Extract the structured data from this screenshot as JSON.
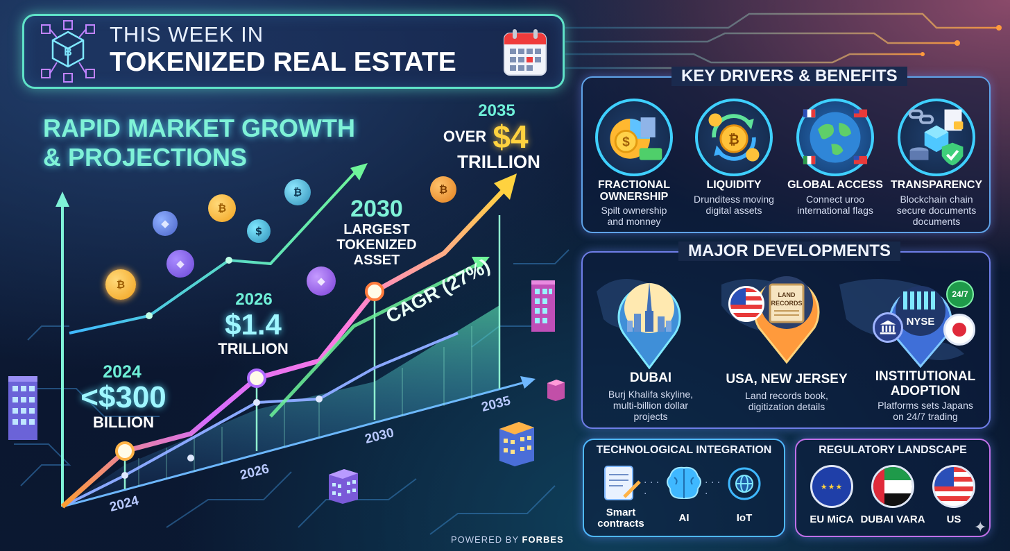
{
  "header": {
    "title_line1": "THIS WEEK IN",
    "title_line2": "TOKENIZED REAL ESTATE",
    "logo_icon": "blockchain-cube-icon",
    "calendar_icon": "calendar-icon"
  },
  "growth": {
    "heading_line1": "RAPID MARKET GROWTH",
    "heading_line2": "& PROJECTIONS",
    "milestones": [
      {
        "year": "2024",
        "value": "<$300",
        "unit": "BILLION"
      },
      {
        "year": "2026",
        "value": "$1.4",
        "unit": "TRILLION"
      },
      {
        "year": "2030",
        "label_line1": "LARGEST",
        "label_line2": "TOKENIZED",
        "label_line3": "ASSET"
      },
      {
        "year": "2035",
        "prefix": "OVER",
        "value": "$4",
        "unit": "TRILLION"
      }
    ],
    "cagr_label": "CAGR (27%)",
    "axis_years": [
      "2024",
      "2026",
      "2030",
      "2035"
    ],
    "footer": {
      "prefix": "POWERED BY",
      "brand": "FORBES"
    }
  },
  "drivers": {
    "title": "KEY DRIVERS & BENEFITS",
    "items": [
      {
        "title_line1": "FRACTIONAL",
        "title_line2": "OWNERSHIP",
        "desc_line1": "Spilt ownership",
        "desc_line2": "and monney",
        "icon": "pie-chart-coins-icon"
      },
      {
        "title_line1": "LIQUIDITY",
        "title_line2": "",
        "desc_line1": "Drunditess moving",
        "desc_line2": "digital assets",
        "icon": "coin-cycle-icon"
      },
      {
        "title_line1": "GLOBAL ACCESS",
        "title_line2": "",
        "desc_line1": "Connect uroo",
        "desc_line2": "international flags",
        "icon": "globe-flags-icon"
      },
      {
        "title_line1": "TRANSPARENCY",
        "title_line2": "",
        "desc_line1": "Blockchain chain",
        "desc_line2": "secure documents",
        "desc_line3": "documents",
        "icon": "blockchain-shield-icon"
      }
    ]
  },
  "developments": {
    "title": "MAJOR DEVELOPMENTS",
    "items": [
      {
        "title_line1": "DUBAI",
        "title_line2": "",
        "desc_line1": "Burj Khalifa skyline,",
        "desc_line2": "multi-billion dollar",
        "desc_line3": "projects",
        "icon": "burj-khalifa-pin-icon"
      },
      {
        "title_line1": "USA, NEW JERSEY",
        "title_line2": "",
        "desc_line1": "Land records book,",
        "desc_line2": "digitization details",
        "icon": "land-records-pin-icon",
        "book_line1": "LAND",
        "book_line2": "RECORDS"
      },
      {
        "title_line1": "INSTITUTIONAL",
        "title_line2": "ADOPTION",
        "desc_line1": "Platforms sets Japans",
        "desc_line2": "on 24/7 trading",
        "icon": "nyse-pin-icon",
        "exchange": "NYSE",
        "badge": "24/7"
      }
    ]
  },
  "tech": {
    "title": "TECHNOLOGICAL INTEGRATION",
    "items": [
      {
        "label_line1": "Smart",
        "label_line2": "contracts",
        "icon": "smart-contract-icon"
      },
      {
        "label_line1": "AI",
        "label_line2": "",
        "icon": "brain-icon"
      },
      {
        "label_line1": "IoT",
        "label_line2": "",
        "icon": "iot-globe-icon"
      }
    ]
  },
  "regulatory": {
    "title": "REGULATORY LANDSCAPE",
    "items": [
      {
        "label": "EU MiCA",
        "icon": "eu-flag-icon"
      },
      {
        "label": "DUBAI VARA",
        "icon": "uae-flag-icon"
      },
      {
        "label": "US",
        "icon": "us-flag-icon"
      }
    ]
  },
  "colors": {
    "accent_cyan": "#5fe3c8",
    "accent_purple": "#b06cff",
    "accent_orange": "#ffb347",
    "panel_border": "#5f7ee0"
  }
}
